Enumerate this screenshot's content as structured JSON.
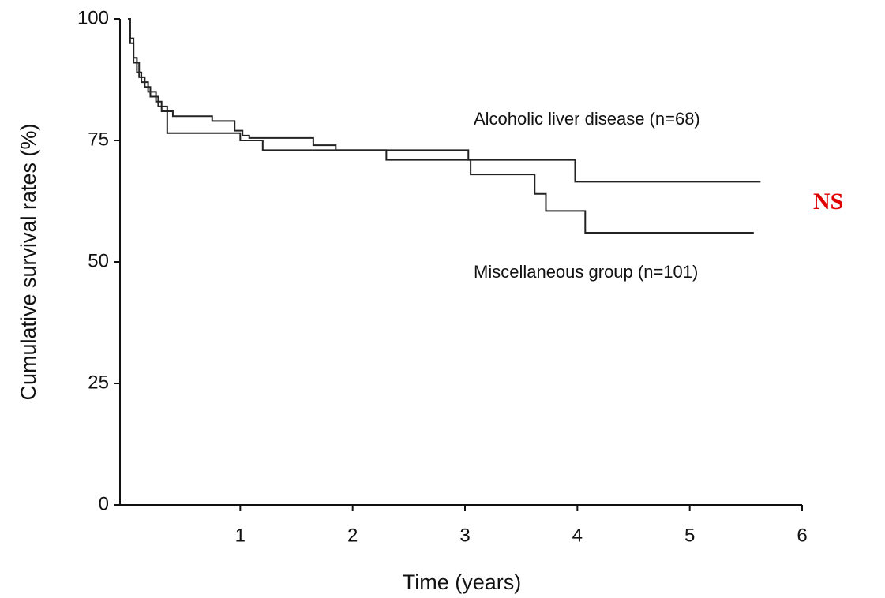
{
  "chart_data": {
    "type": "step",
    "xlabel": "Time (years)",
    "ylabel": "Cumulative survival rates (%)",
    "annotation": "NS",
    "xlim": [
      0,
      6
    ],
    "xticks": [
      1,
      2,
      3,
      4,
      5,
      6
    ],
    "ylim": [
      0,
      100
    ],
    "yticks": [
      0,
      25,
      50,
      75,
      100
    ],
    "series": [
      {
        "name": "Alcoholic liver disease (n=68)",
        "color": "#222222",
        "x": [
          0,
          0.02,
          0.05,
          0.08,
          0.12,
          0.18,
          0.25,
          0.3,
          0.4,
          0.75,
          0.95,
          1.02,
          1.08,
          1.65,
          1.85,
          3.03,
          3.98,
          5.63
        ],
        "values": [
          100,
          96,
          92,
          89,
          87,
          85,
          83,
          81,
          80,
          79,
          77,
          76,
          75.5,
          74,
          73,
          71,
          66.5,
          66.5
        ]
      },
      {
        "name": "Miscellaneous group (n=101)",
        "color": "#222222",
        "x": [
          0,
          0.02,
          0.05,
          0.1,
          0.15,
          0.2,
          0.27,
          0.35,
          1.0,
          1.2,
          2.3,
          3.05,
          3.62,
          3.72,
          4.07,
          5.57
        ],
        "values": [
          100,
          95,
          91,
          88,
          86,
          84,
          82,
          76.5,
          75,
          73,
          71,
          68,
          64,
          60.5,
          56,
          56
        ]
      }
    ]
  }
}
